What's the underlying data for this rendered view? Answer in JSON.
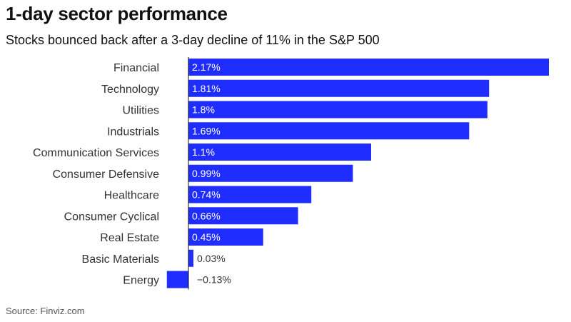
{
  "chart_data": {
    "type": "bar",
    "orientation": "horizontal",
    "title": "1-day sector performance",
    "subtitle": "Stocks bounced back after a 3-day decline of 11% in the S&P 500",
    "categories": [
      "Financial",
      "Technology",
      "Utilities",
      "Industrials",
      "Communication Services",
      "Consumer Defensive",
      "Healthcare",
      "Consumer Cyclical",
      "Real Estate",
      "Basic Materials",
      "Energy"
    ],
    "values": [
      2.17,
      1.81,
      1.8,
      1.69,
      1.1,
      0.99,
      0.74,
      0.66,
      0.45,
      0.03,
      -0.13
    ],
    "value_labels": [
      "2.17%",
      "1.81%",
      "1.8%",
      "1.69%",
      "1.1%",
      "0.99%",
      "0.74%",
      "0.66%",
      "0.45%",
      "0.03%",
      "−0.13%"
    ],
    "xlabel": "",
    "ylabel": "",
    "xlim": [
      -0.13,
      2.17
    ],
    "grid": false,
    "legend": "none",
    "source": "Source: Finviz.com"
  },
  "colors": {
    "bar": "#1f2dff",
    "label_inside": "#ffffff",
    "label_outside": "#333333",
    "axis_line": "#111111"
  }
}
